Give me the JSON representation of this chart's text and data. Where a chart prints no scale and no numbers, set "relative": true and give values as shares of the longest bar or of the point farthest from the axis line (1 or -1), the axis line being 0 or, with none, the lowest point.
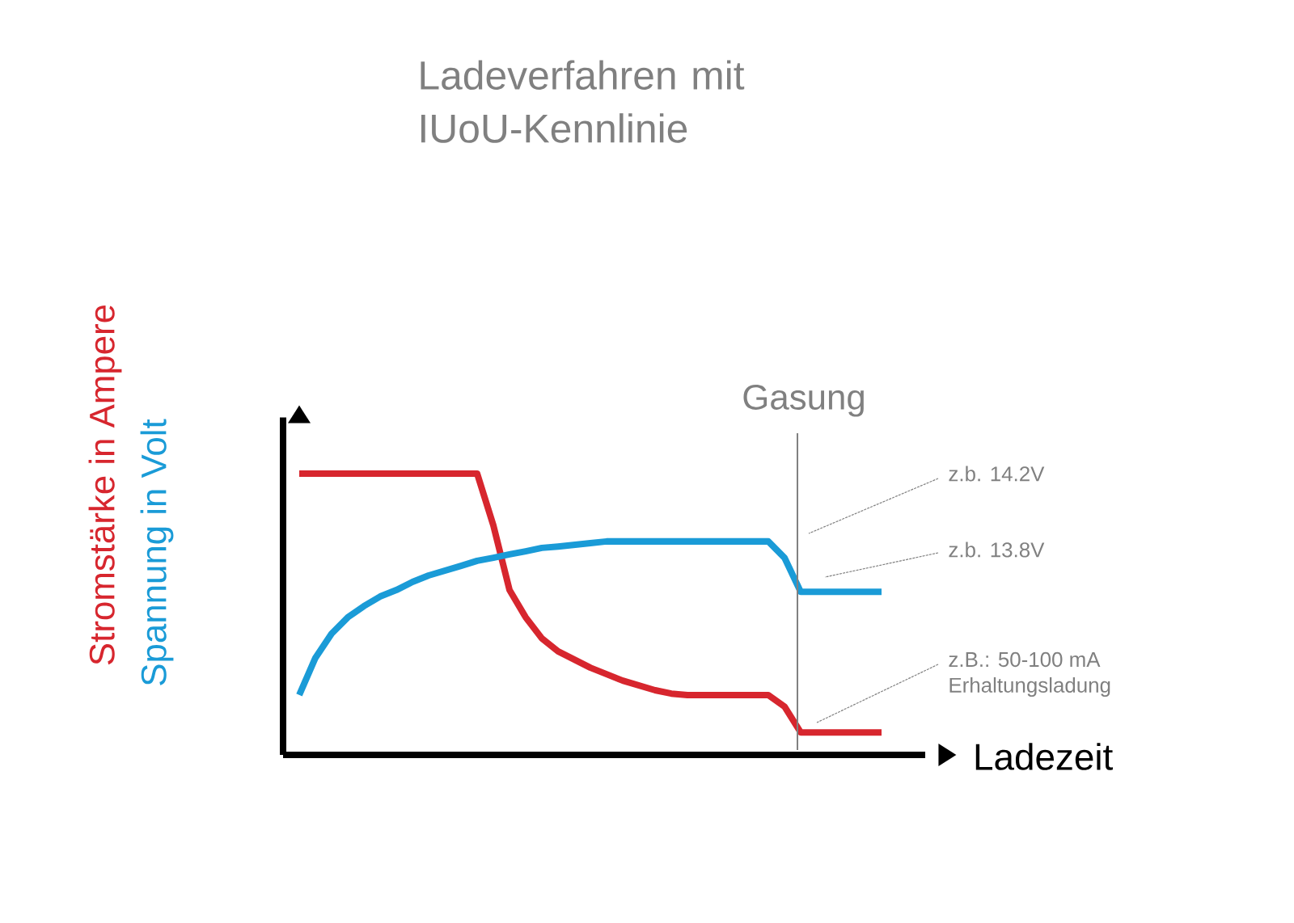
{
  "chart_data": {
    "type": "line",
    "title": "Ladeverfahren mit IUoU-Kennlinie",
    "xlabel": "Ladezeit",
    "relative": true,
    "marker": "none",
    "line_style": "solid",
    "categories": [
      null,
      null,
      null,
      null,
      null,
      null,
      null,
      null,
      null,
      null,
      null,
      null,
      null,
      null,
      null,
      null,
      null,
      null,
      null,
      null,
      null,
      null,
      null,
      null,
      null,
      null,
      null,
      null,
      null,
      null,
      null,
      null,
      null,
      null,
      null,
      null,
      null
    ],
    "series": [
      {
        "name": "Stromstärke in Ampere",
        "color": "#d7262e",
        "values": [
          1,
          1,
          1,
          1,
          1,
          1,
          1,
          1,
          1,
          1,
          1,
          1,
          0.816,
          0.586,
          0.489,
          0.414,
          0.368,
          0.339,
          0.31,
          0.287,
          0.264,
          0.247,
          0.23,
          0.218,
          0.213,
          0.213,
          0.213,
          0.213,
          0.213,
          0.213,
          0.172,
          0.08,
          0.08,
          0.08,
          0.08,
          0.08,
          0.08
        ]
      },
      {
        "name": "Spannung in Volt",
        "color": "#1a9bd7",
        "values": [
          0.213,
          0.345,
          0.431,
          0.489,
          0.529,
          0.563,
          0.586,
          0.615,
          0.638,
          0.655,
          0.672,
          0.69,
          0.701,
          0.713,
          0.724,
          0.736,
          0.741,
          0.747,
          0.753,
          0.759,
          0.759,
          0.759,
          0.759,
          0.759,
          0.759,
          0.759,
          0.759,
          0.759,
          0.759,
          0.759,
          0.701,
          0.58,
          0.58,
          0.58,
          0.58,
          0.58,
          0.58
        ]
      }
    ],
    "annotations": [
      "Gasung",
      "z.b. 14.2V",
      "z.b. 13.8V",
      "z.B.: 50-100 mA",
      "Erhaltungsladung"
    ]
  }
}
